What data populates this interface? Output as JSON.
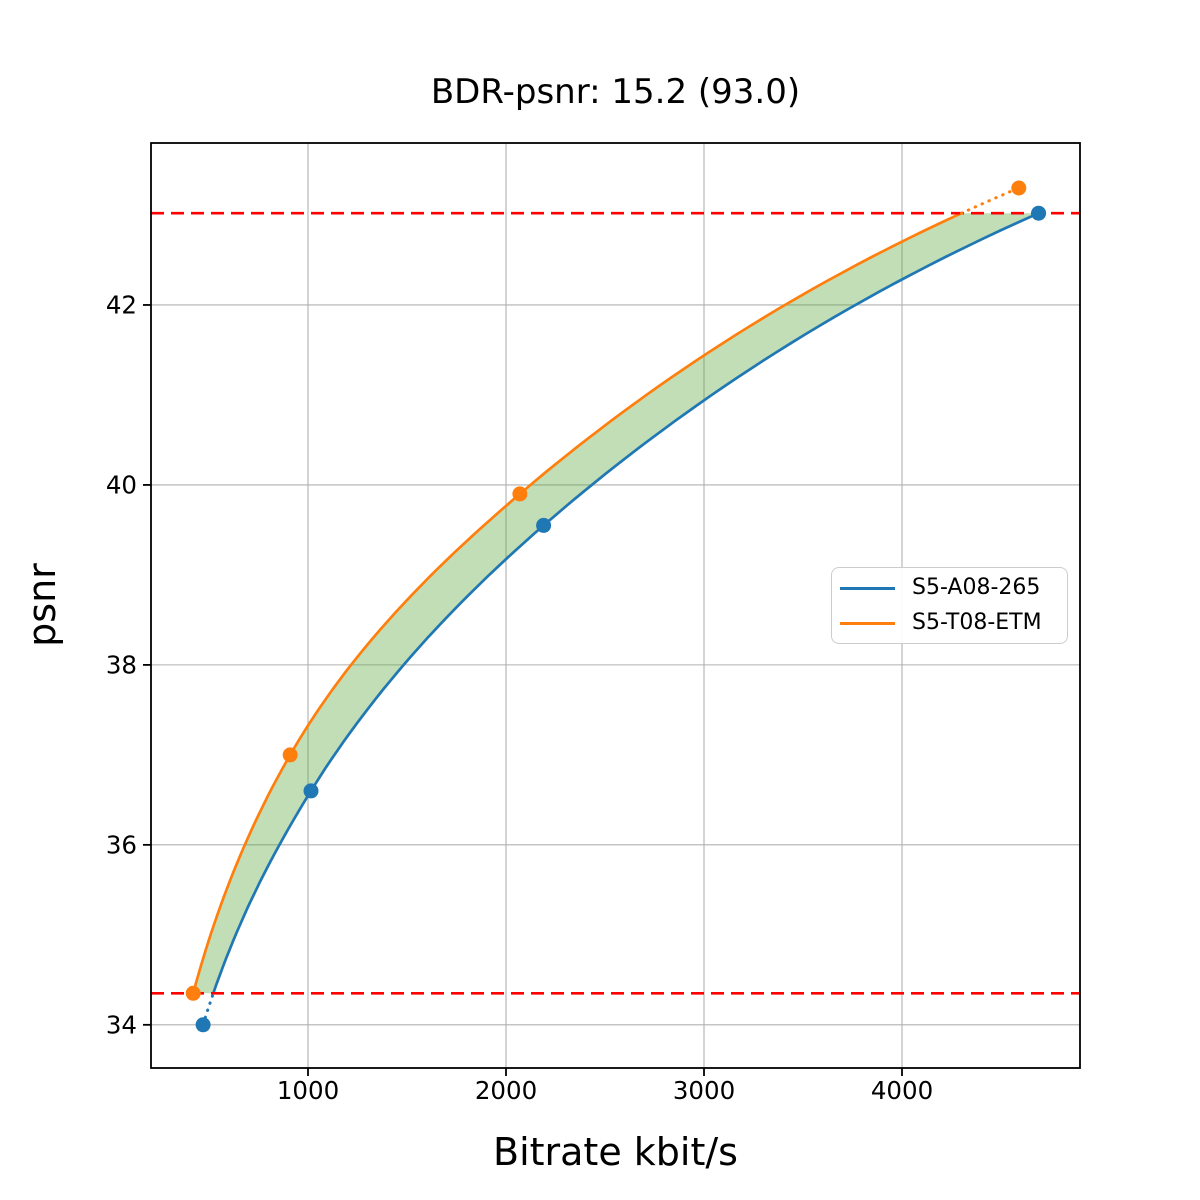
{
  "figure": {
    "background": "#ffffff"
  },
  "chart_data": {
    "type": "line",
    "title": "BDR-psnr: 15.2 (93.0)",
    "xlabel": "Bitrate kbit/s",
    "ylabel": "psnr",
    "xlim": [
      207,
      4899
    ],
    "ylim": [
      33.52,
      43.8
    ],
    "xticks": [
      1000,
      2000,
      3000,
      4000
    ],
    "yticks": [
      34,
      36,
      38,
      40,
      42
    ],
    "grid": true,
    "grid_color": "#b0b0b0",
    "spine_color": "#000000",
    "series": [
      {
        "name": "S5-A08-265",
        "color": "#1f77b4",
        "points": [
          [
            470,
            34.0
          ],
          [
            1015,
            36.6
          ],
          [
            2190,
            39.55
          ],
          [
            4690,
            43.02
          ]
        ]
      },
      {
        "name": "S5-T08-ETM",
        "color": "#ff7f0e",
        "points": [
          [
            420,
            34.35
          ],
          [
            910,
            37.0
          ],
          [
            2070,
            39.9
          ],
          [
            4590,
            43.3
          ]
        ]
      }
    ],
    "overlap_lines": {
      "low": 34.35,
      "high": 43.02,
      "color": "#ff0000",
      "style": "dashed"
    },
    "fill_between": {
      "color": "#5ba742",
      "alpha": 0.38
    },
    "legend": {
      "position": "center-right",
      "entries": [
        "S5-A08-265",
        "S5-T08-ETM"
      ]
    }
  }
}
